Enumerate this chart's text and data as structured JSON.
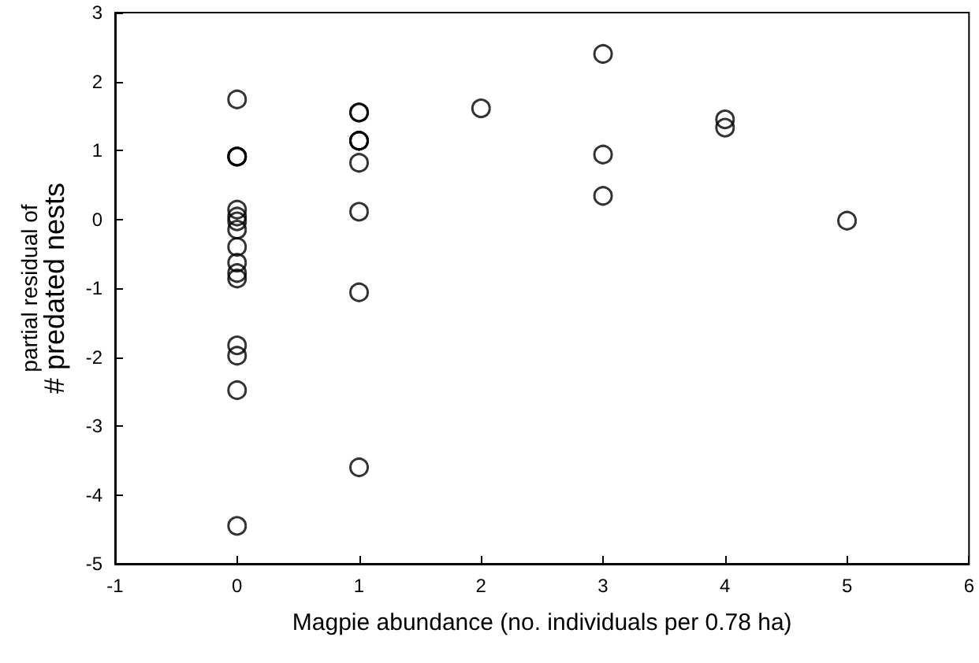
{
  "chart_data": {
    "type": "scatter",
    "xlabel": "Magpie abundance (no. individuals per 0.78 ha)",
    "ylabel": "partial residual of\n# predated nests",
    "x": [
      0,
      0,
      0,
      0,
      0,
      0,
      0,
      0,
      0,
      0,
      0,
      0,
      0,
      0,
      0,
      0,
      1,
      1,
      1,
      1,
      1,
      1,
      1,
      1,
      1,
      2,
      3,
      3,
      3,
      4,
      4,
      5
    ],
    "series": [
      {
        "color": "#000000",
        "values": [
          1.74,
          0.91,
          0.91,
          0.14,
          0.04,
          -0.03,
          -0.15,
          -0.4,
          -0.63,
          -0.78,
          -0.86,
          -1.83,
          -1.98,
          -2.48,
          -4.45,
          0.91,
          1.55,
          1.55,
          1.14,
          1.14,
          0.82,
          0.11,
          -1.06,
          -3.6,
          1.14,
          1.61,
          2.4,
          0.94,
          0.34,
          1.45,
          1.33,
          -0.02
        ]
      }
    ],
    "xlim": [
      -1,
      6
    ],
    "xticks": [
      -1,
      0,
      1,
      2,
      3,
      4,
      5,
      6
    ],
    "ylim": [
      -5,
      3
    ],
    "yticks": [
      -5,
      -4,
      -3,
      -2,
      -1,
      0,
      1,
      2,
      3
    ],
    "grid": false,
    "marker": "circle"
  }
}
